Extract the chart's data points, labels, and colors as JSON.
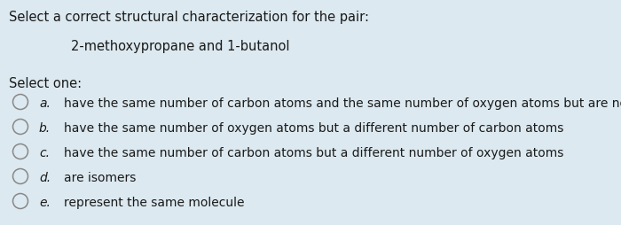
{
  "background_color": "#dce9f0",
  "title_text": "Select a correct structural characterization for the pair:",
  "subtitle_text": "2-methoxypropane and 1-butanol",
  "select_one_text": "Select one:",
  "options": [
    {
      "label": "a.",
      "text": "have the same number of carbon atoms and the same number of oxygen atoms but are not isomers"
    },
    {
      "label": "b.",
      "text": "have the same number of oxygen atoms but a different number of carbon atoms"
    },
    {
      "label": "c.",
      "text": "have the same number of carbon atoms but a different number of oxygen atoms"
    },
    {
      "label": "d.",
      "text": "are isomers"
    },
    {
      "label": "e.",
      "text": "represent the same molecule"
    }
  ],
  "title_fontsize": 10.5,
  "subtitle_fontsize": 10.5,
  "option_fontsize": 10.0,
  "text_color": "#1a1a1a",
  "circle_edge_color": "#888888",
  "fig_width": 7.0,
  "fig_height": 2.55,
  "dpi": 100
}
